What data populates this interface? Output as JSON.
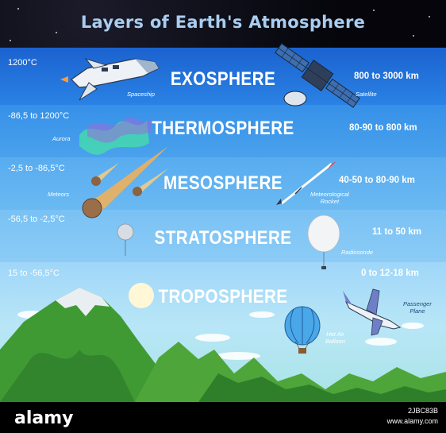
{
  "title": "Layers of Earth's Atmosphere",
  "layers": {
    "exosphere": {
      "name": "EXOSPHERE",
      "temperature": "1200°C",
      "altitude": "800 to 3000 km"
    },
    "thermosphere": {
      "name": "THERMOSPHERE",
      "temperature": "-86,5 to 1200°C",
      "altitude": "80-90 to 800 km"
    },
    "mesosphere": {
      "name": "MESOSPHERE",
      "temperature": "-2,5 to -86,5°C",
      "altitude": "40-50 to 80-90 km"
    },
    "stratosphere": {
      "name": "STRATOSPHERE",
      "temperature": "-56,5 to -2,5°C",
      "altitude": "11 to 50 km"
    },
    "troposphere": {
      "name": "TROPOSPHERE",
      "temperature": "15 to -56,5°C",
      "altitude": "0 to 12-18 km"
    }
  },
  "objects": {
    "spaceship": "Spaceship",
    "satellite": "Satellite",
    "aurora": "Aurora",
    "meteors": "Meteors",
    "rocket_line1": "Meteorological",
    "rocket_line2": "Rocket",
    "radiosonde": "Radiosonde",
    "plane_line1": "Passenger",
    "plane_line2": "Plane",
    "balloon_line1": "Hot Air",
    "balloon_line2": "Balloon"
  },
  "footer": {
    "watermark": "alamy",
    "image_id": "2JBC83B",
    "site": "www.alamy.com"
  },
  "colors": {
    "exosphere": "#1f68d6",
    "thermosphere": "#3e96ea",
    "mesosphere": "#5fb1f0",
    "stratosphere": "#84c7f5",
    "troposphere": "#a9dcf7",
    "title": "#a9cdf0",
    "mountain": "#4ea63a"
  }
}
